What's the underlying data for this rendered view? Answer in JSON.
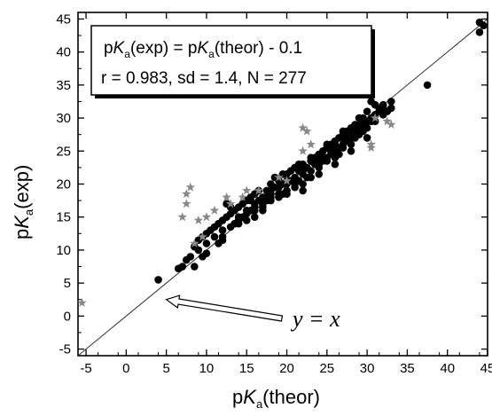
{
  "chart_data": {
    "type": "scatter",
    "xlabel": {
      "prefix": "p",
      "italic": "K",
      "sub": "a",
      "suffix": "(theor)"
    },
    "ylabel": {
      "prefix": "p",
      "italic": "K",
      "sub": "a",
      "suffix": "(exp)"
    },
    "xlim": [
      -6,
      45
    ],
    "ylim": [
      -6,
      46
    ],
    "xticks": [
      -5,
      0,
      5,
      10,
      15,
      20,
      25,
      30,
      35,
      40,
      45
    ],
    "yticks": [
      -5,
      0,
      5,
      10,
      15,
      20,
      25,
      30,
      35,
      40,
      45
    ],
    "grid": false,
    "legend_box": {
      "placement": "top-left",
      "line1": {
        "prefix": "p",
        "italic1": "K",
        "sub1": "a",
        "mid": "(exp) = p",
        "italic2": "K",
        "sub2": "a",
        "suffix": "(theor) - 0.1"
      },
      "line2": "r = 0.983, sd = 1.4, N = 277"
    },
    "annotation": {
      "text": "y = x",
      "arrow_target": [
        5,
        2.5
      ]
    },
    "reference_line": {
      "slope": 1,
      "intercept": 0,
      "from": -6,
      "to": 45
    },
    "series": [
      {
        "marker": "circle",
        "color": "#000000",
        "points": [
          [
            4,
            5.5
          ],
          [
            6.5,
            7.2
          ],
          [
            7,
            7.5
          ],
          [
            7.5,
            8.5
          ],
          [
            8,
            9
          ],
          [
            8.5,
            10.5
          ],
          [
            9,
            11.5
          ],
          [
            8.5,
            7.5
          ],
          [
            9.5,
            12
          ],
          [
            10,
            12.5
          ],
          [
            10,
            9.5
          ],
          [
            10.5,
            13
          ],
          [
            11,
            13.5
          ],
          [
            11.5,
            14
          ],
          [
            12,
            14.5
          ],
          [
            12.5,
            15
          ],
          [
            12,
            13
          ],
          [
            13,
            15.5
          ],
          [
            13.5,
            16
          ],
          [
            14,
            14.5
          ],
          [
            14,
            16.5
          ],
          [
            14.5,
            17
          ],
          [
            15,
            17.5
          ],
          [
            15,
            15.5
          ],
          [
            15.5,
            16
          ],
          [
            15.5,
            18
          ],
          [
            16,
            17
          ],
          [
            16,
            18.5
          ],
          [
            16.5,
            17.5
          ],
          [
            17,
            18
          ],
          [
            17,
            16.5
          ],
          [
            17.5,
            19
          ],
          [
            18,
            18.5
          ],
          [
            18,
            20
          ],
          [
            18.5,
            19.5
          ],
          [
            19,
            18
          ],
          [
            19,
            20.5
          ],
          [
            19.5,
            20
          ],
          [
            20,
            19
          ],
          [
            20,
            21.5
          ],
          [
            20.5,
            20.5
          ],
          [
            21,
            21
          ],
          [
            21,
            19.5
          ],
          [
            21.5,
            22
          ],
          [
            22,
            21.5
          ],
          [
            22,
            20
          ],
          [
            22.5,
            22.5
          ],
          [
            23,
            22
          ],
          [
            23,
            24
          ],
          [
            23.5,
            23
          ],
          [
            24,
            22.5
          ],
          [
            24,
            24.5
          ],
          [
            24.5,
            23.5
          ],
          [
            25,
            24
          ],
          [
            25,
            25.5
          ],
          [
            25.5,
            24.5
          ],
          [
            26,
            25
          ],
          [
            26,
            26.5
          ],
          [
            26.5,
            25.5
          ],
          [
            27,
            26
          ],
          [
            27,
            27.5
          ],
          [
            27.5,
            26.5
          ],
          [
            28,
            27
          ],
          [
            28,
            28.5
          ],
          [
            28.5,
            28
          ],
          [
            29,
            28.5
          ],
          [
            29,
            30
          ],
          [
            29.5,
            29
          ],
          [
            30,
            29.5
          ],
          [
            30,
            31
          ],
          [
            30.5,
            30
          ],
          [
            31,
            30.5
          ],
          [
            31,
            32
          ],
          [
            31.5,
            31
          ],
          [
            32,
            31.5
          ],
          [
            32.5,
            31
          ],
          [
            33,
            32.5
          ],
          [
            33,
            31.5
          ],
          [
            30.5,
            32.5
          ],
          [
            37.5,
            35
          ],
          [
            44,
            43
          ],
          [
            44.5,
            44
          ],
          [
            44,
            44.5
          ],
          [
            12.5,
            17
          ],
          [
            13,
            16.5
          ],
          [
            16.5,
            19
          ],
          [
            17.5,
            18
          ],
          [
            18.5,
            21
          ],
          [
            19.5,
            21.5
          ],
          [
            20.5,
            22
          ],
          [
            21.5,
            23
          ],
          [
            22.5,
            21
          ],
          [
            24.5,
            25
          ],
          [
            25.5,
            26
          ],
          [
            26.5,
            24.5
          ],
          [
            27.5,
            28
          ],
          [
            28.5,
            27
          ],
          [
            29.5,
            28
          ],
          [
            11,
            12
          ],
          [
            10,
            11
          ],
          [
            14.5,
            15
          ],
          [
            15.5,
            17.5
          ],
          [
            16,
            16
          ],
          [
            17,
            17
          ],
          [
            18,
            17.5
          ],
          [
            19,
            19.5
          ],
          [
            20,
            20.5
          ],
          [
            21,
            22.5
          ],
          [
            23,
            23.5
          ],
          [
            24,
            23
          ],
          [
            25,
            23.5
          ],
          [
            26,
            24
          ],
          [
            27,
            25.5
          ],
          [
            28,
            26
          ],
          [
            29,
            27.5
          ],
          [
            30,
            28.5
          ],
          [
            31,
            29.5
          ],
          [
            32,
            30.5
          ],
          [
            13.5,
            14
          ],
          [
            15,
            14.5
          ],
          [
            17.5,
            17.5
          ],
          [
            19.5,
            18.5
          ],
          [
            21.5,
            20.5
          ],
          [
            22,
            23
          ],
          [
            23.5,
            24
          ],
          [
            24.5,
            24
          ],
          [
            25.5,
            25
          ],
          [
            26.5,
            27
          ],
          [
            27.5,
            27
          ],
          [
            28.5,
            29
          ],
          [
            29.5,
            30
          ],
          [
            30.5,
            29.5
          ],
          [
            31.5,
            31.5
          ],
          [
            32,
            32
          ],
          [
            9,
            10
          ],
          [
            9.5,
            9
          ],
          [
            11.5,
            11
          ],
          [
            12,
            11.5
          ],
          [
            13,
            13.5
          ],
          [
            14,
            15
          ],
          [
            16,
            15
          ],
          [
            18,
            19
          ],
          [
            20,
            18.5
          ],
          [
            22,
            19
          ],
          [
            24,
            21.5
          ],
          [
            26,
            23
          ],
          [
            28,
            25
          ],
          [
            30,
            27
          ],
          [
            26,
            26
          ],
          [
            27,
            27
          ],
          [
            28,
            28
          ],
          [
            29,
            29
          ],
          [
            23,
            21
          ],
          [
            21,
            20
          ],
          [
            19,
            18.5
          ],
          [
            17,
            16
          ],
          [
            15,
            16
          ],
          [
            14,
            14
          ],
          [
            12,
            12
          ],
          [
            20,
            20
          ],
          [
            18,
            18
          ],
          [
            16,
            16.5
          ],
          [
            22,
            22
          ],
          [
            24,
            24
          ],
          [
            25,
            26
          ],
          [
            26,
            25
          ],
          [
            27,
            28
          ],
          [
            29,
            28
          ]
        ]
      },
      {
        "marker": "star",
        "color": "#888888",
        "points": [
          [
            -5.5,
            2
          ],
          [
            7.5,
            17
          ],
          [
            7.5,
            18.5
          ],
          [
            8,
            19.5
          ],
          [
            7,
            15
          ],
          [
            9,
            14.5
          ],
          [
            10,
            15
          ],
          [
            12.5,
            18
          ],
          [
            13,
            17
          ],
          [
            11,
            16
          ],
          [
            22,
            28.5
          ],
          [
            22.5,
            28
          ],
          [
            23,
            26
          ],
          [
            22,
            25
          ],
          [
            19,
            21
          ],
          [
            30.5,
            25.5
          ],
          [
            30.5,
            26
          ],
          [
            33,
            29
          ],
          [
            32.5,
            29.5
          ],
          [
            31,
            30
          ],
          [
            14.5,
            18
          ],
          [
            15,
            19
          ],
          [
            16.5,
            19
          ],
          [
            20,
            20.5
          ],
          [
            9.5,
            12
          ],
          [
            8.5,
            11
          ]
        ]
      }
    ]
  }
}
